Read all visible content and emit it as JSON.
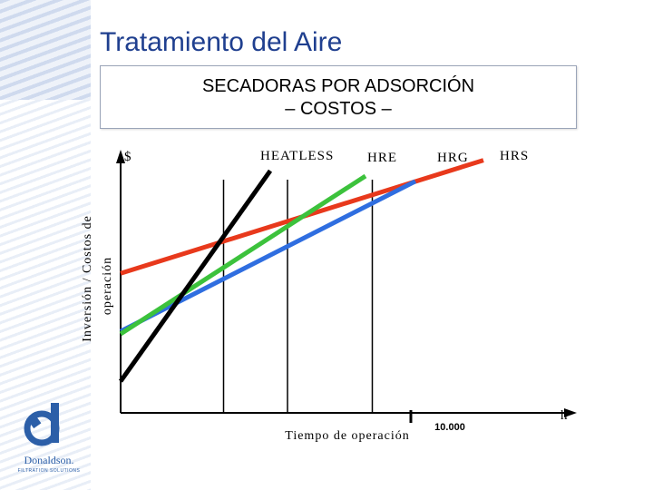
{
  "slide": {
    "title": "Tratamiento  del Aire",
    "subtitle_line1": "SECADORAS POR ADSORCIÓN",
    "subtitle_line2": "– COSTOS –"
  },
  "logo": {
    "text": "Donaldson.",
    "tagline": "FILTRATION SOLUTIONS"
  },
  "chart_data": {
    "type": "line",
    "y_axis_symbol": "$",
    "ylabel_line1": "Inversión / Costos de",
    "ylabel_line2": "operación",
    "xlabel": "Tiempo de operación",
    "x_axis_end_label": "h",
    "x_tick_label": "10.000",
    "grid": false,
    "legend": "labels above lines",
    "series": [
      {
        "name": "HEATLESS",
        "color": "#000000",
        "points": [
          [
            0.0,
            0.12
          ],
          [
            0.33,
            0.92
          ]
        ]
      },
      {
        "name": "HRE",
        "color": "#3cc23c",
        "points": [
          [
            0.0,
            0.3
          ],
          [
            0.54,
            0.9
          ]
        ]
      },
      {
        "name": "HRG",
        "color": "#2f6ee0",
        "points": [
          [
            0.0,
            0.31
          ],
          [
            0.65,
            0.88
          ]
        ]
      },
      {
        "name": "HRS",
        "color": "#e8391c",
        "points": [
          [
            0.0,
            0.53
          ],
          [
            0.8,
            0.96
          ]
        ]
      }
    ],
    "vertical_markers": [
      0.227,
      0.368,
      0.555
    ]
  }
}
